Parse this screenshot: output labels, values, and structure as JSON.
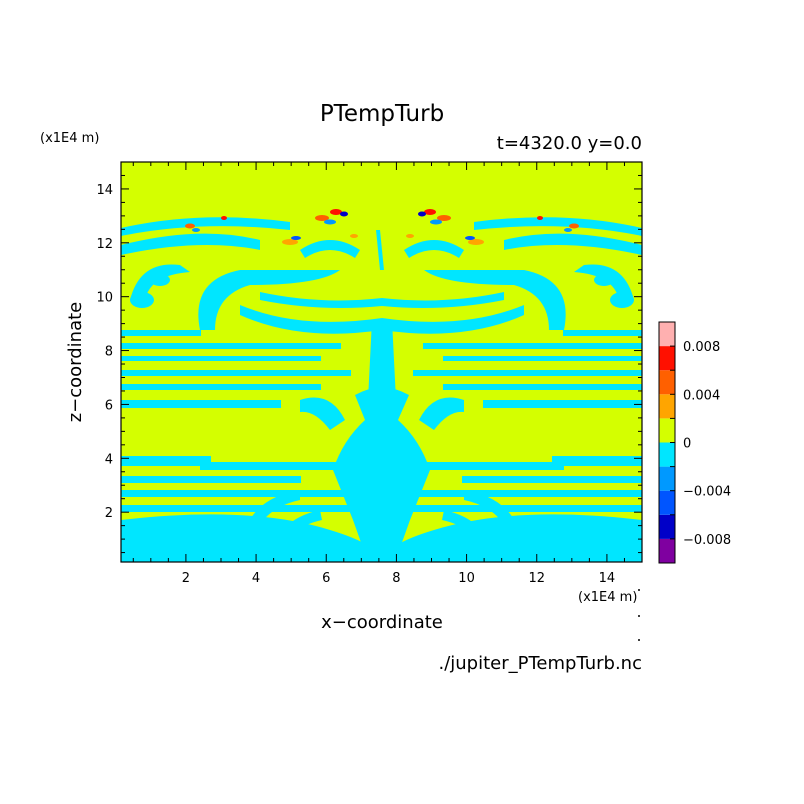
{
  "chart_data": {
    "type": "heatmap",
    "title": "PTempTurb",
    "subtitle": "t=4320.0 y=0.0",
    "xlabel": "x−coordinate",
    "ylabel": "z−coordinate",
    "x_unit": "(x1E4 m)",
    "y_unit": "(x1E4 m)",
    "source_file": "./jupiter_PTempTurb.nc",
    "xlim": [
      0.15,
      15.0
    ],
    "ylim": [
      0.15,
      15.0
    ],
    "x_ticks": [
      "2",
      "4",
      "6",
      "8",
      "10",
      "12",
      "14"
    ],
    "y_ticks": [
      "2",
      "4",
      "6",
      "8",
      "10",
      "12",
      "14"
    ],
    "colorbar": {
      "levels": [
        -0.01,
        -0.008,
        -0.006,
        -0.004,
        -0.002,
        0,
        0.002,
        0.004,
        0.006,
        0.008,
        0.01
      ],
      "tick_labels": [
        "0.008",
        "0.004",
        "0",
        "−0.004",
        "−0.008"
      ],
      "colors": [
        "#7f00a0",
        "#0000c8",
        "#0055ff",
        "#0099ff",
        "#00e6ff",
        "#d4ff00",
        "#ffa500",
        "#ff6000",
        "#ff1000",
        "#ffb0b0"
      ]
    },
    "background_level_color": "#d4ff00",
    "negative_level_color": "#00e6ff"
  }
}
